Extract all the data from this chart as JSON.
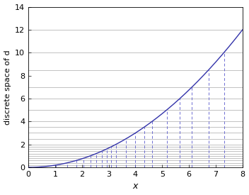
{
  "x_max": 8,
  "y_max": 14,
  "curve_scale": 0.1875,
  "y_levels": [
    0.2,
    0.4,
    0.6,
    0.8,
    1.0,
    1.2,
    1.4,
    1.6,
    1.8,
    2.0,
    2.5,
    3.0,
    3.5,
    4.0,
    5.0,
    6.0,
    7.0,
    8.5,
    10.0,
    12.0
  ],
  "xlabel": "x",
  "ylabel": "discrete space of d",
  "curve_color": "#3333aa",
  "hline_color": "#aaaaaa",
  "vline_color": "#5555cc",
  "bg_color": "#ffffff",
  "figsize": [
    3.52,
    2.75
  ],
  "dpi": 100,
  "yticks": [
    0,
    2,
    4,
    6,
    8,
    10,
    12,
    14
  ],
  "xticks": [
    0,
    1,
    2,
    3,
    4,
    5,
    6,
    7,
    8
  ],
  "ylim": [
    0,
    14
  ],
  "xlim": [
    0,
    8
  ]
}
